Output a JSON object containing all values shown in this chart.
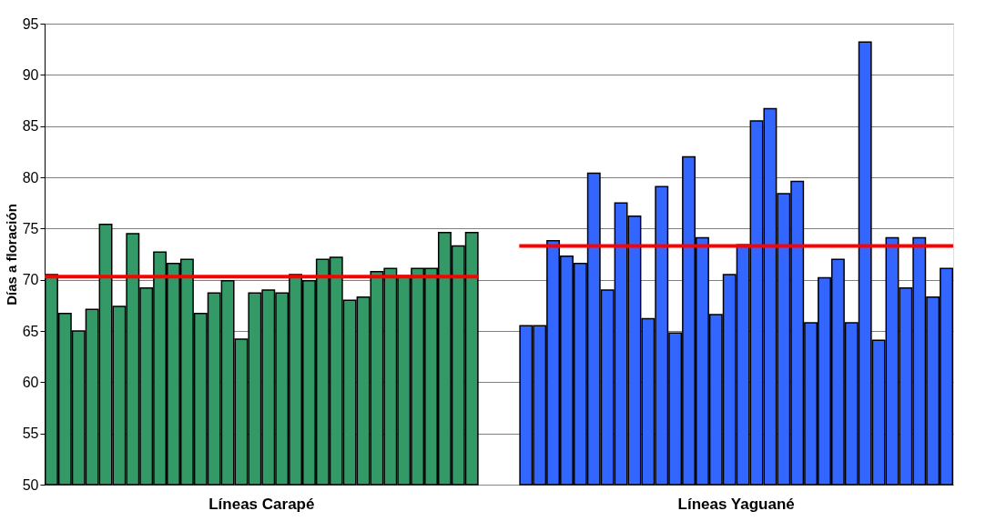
{
  "chart_data": {
    "type": "bar",
    "ylabel": "Días a floración",
    "categories": [
      null,
      null,
      null,
      null,
      null,
      null,
      null,
      null,
      null,
      null,
      null,
      null,
      null,
      null,
      null,
      null,
      null,
      null,
      null,
      null,
      null,
      null,
      null,
      null,
      null,
      null,
      null,
      null,
      null,
      null,
      null,
      null,
      null,
      null,
      null,
      null,
      null,
      null,
      null,
      null,
      null,
      null,
      null,
      null,
      null,
      null,
      null,
      null,
      null,
      null,
      null,
      null,
      null,
      null,
      null,
      null,
      null,
      null,
      null,
      null,
      null,
      null,
      null,
      null,
      null,
      null,
      null
    ],
    "values": [
      70.5,
      66.7,
      65.0,
      67.1,
      75.4,
      67.4,
      74.5,
      69.2,
      72.7,
      71.6,
      72.0,
      66.7,
      68.7,
      69.9,
      64.2,
      68.7,
      69.0,
      68.7,
      70.5,
      69.9,
      72.0,
      72.2,
      68.0,
      68.3,
      70.8,
      71.1,
      70.4,
      71.1,
      71.1,
      74.6,
      73.3,
      74.6,
      null,
      null,
      null,
      65.5,
      65.5,
      73.8,
      72.3,
      71.6,
      80.4,
      69.0,
      77.5,
      76.2,
      66.2,
      79.1,
      64.8,
      82.0,
      74.1,
      66.6,
      70.5,
      73.4,
      85.5,
      86.7,
      78.4,
      79.6,
      65.8,
      70.2,
      72.0,
      65.8,
      93.2,
      64.1,
      74.1,
      69.2,
      74.1,
      68.3,
      71.1
    ],
    "colors": [
      "#339966",
      "#339966",
      "#339966",
      "#339966",
      "#339966",
      "#339966",
      "#339966",
      "#339966",
      "#339966",
      "#339966",
      "#339966",
      "#339966",
      "#339966",
      "#339966",
      "#339966",
      "#339966",
      "#339966",
      "#339966",
      "#339966",
      "#339966",
      "#339966",
      "#339966",
      "#339966",
      "#339966",
      "#339966",
      "#339966",
      "#339966",
      "#339966",
      "#339966",
      "#339966",
      "#339966",
      "#339966",
      null,
      null,
      null,
      "#3366ff",
      "#3366ff",
      "#3366ff",
      "#3366ff",
      "#3366ff",
      "#3366ff",
      "#3366ff",
      "#3366ff",
      "#3366ff",
      "#3366ff",
      "#3366ff",
      "#3366ff",
      "#3366ff",
      "#3366ff",
      "#3366ff",
      "#3366ff",
      "#3366ff",
      "#3366ff",
      "#3366ff",
      "#3366ff",
      "#3366ff",
      "#3366ff",
      "#3366ff",
      "#3366ff",
      "#3366ff",
      "#3366ff",
      "#3366ff",
      "#3366ff",
      "#3366ff",
      "#3366ff",
      "#3366ff",
      "#3366ff"
    ],
    "ref_lines": [
      {
        "axis": "y",
        "value": 70.3,
        "color": "#ff0000"
      },
      {
        "axis": "y",
        "value": 73.3,
        "color": "#ff0000"
      }
    ],
    "annotations": [
      "Líneas Carapé",
      "Líneas Yaguané"
    ],
    "ylim": [
      50,
      95
    ],
    "yticks": [
      50,
      55,
      60,
      65,
      70,
      75,
      80,
      85,
      90,
      95
    ],
    "grid": "y"
  }
}
